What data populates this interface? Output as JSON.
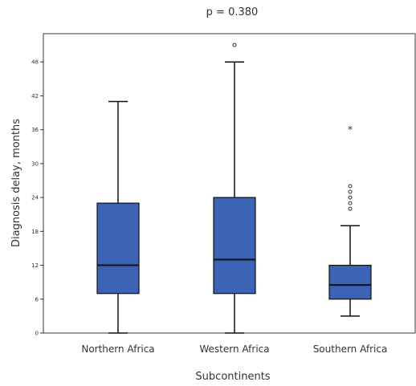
{
  "chart_data": {
    "type": "box",
    "title": "p = 0.380",
    "xlabel": "Subcontinents",
    "ylabel": "Diagnosis delay, months",
    "ylim": [
      0,
      53
    ],
    "yticks": [
      0,
      6,
      12,
      18,
      24,
      30,
      36,
      42,
      48
    ],
    "grid": false,
    "box_color": "#3a63b3",
    "categories": [
      "Northern Africa",
      "Western Africa",
      "Southern Africa"
    ],
    "boxes": [
      {
        "category": "Northern Africa",
        "whisker_low": 0,
        "q1": 7,
        "median": 12,
        "q3": 23,
        "whisker_high": 41,
        "outliers": [],
        "extremes": []
      },
      {
        "category": "Western Africa",
        "whisker_low": 0,
        "q1": 7,
        "median": 13,
        "q3": 24,
        "whisker_high": 48,
        "outliers": [
          51
        ],
        "extremes": []
      },
      {
        "category": "Southern Africa",
        "whisker_low": 3,
        "q1": 6,
        "median": 8.5,
        "q3": 12,
        "whisker_high": 19,
        "outliers": [
          22,
          23,
          24,
          25,
          26
        ],
        "extremes": [
          36
        ]
      }
    ]
  }
}
